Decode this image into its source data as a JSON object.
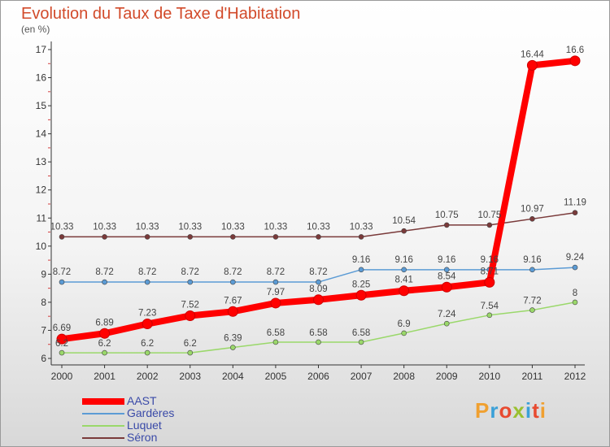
{
  "header": {
    "title": "Evolution du Taux de Taxe d'Habitation",
    "unit": "(en %)"
  },
  "logo": {
    "text": "Proxiti",
    "colors": [
      "#f0a030",
      "#3aa0d8",
      "#e84a30",
      "#9ac030",
      "#3aa0d8",
      "#e84a30",
      "#f0a030"
    ]
  },
  "chart_data": {
    "type": "line",
    "title": "Evolution du Taux de Taxe d'Habitation",
    "ylabel": "(en %)",
    "xlabel": "",
    "ylim": [
      6,
      17
    ],
    "yticks": [
      "6",
      "7",
      "8",
      "9",
      "10",
      "11",
      "12",
      "13",
      "14",
      "15",
      "16",
      "17"
    ],
    "categories": [
      "2000",
      "2001",
      "2002",
      "2003",
      "2004",
      "2005",
      "2006",
      "2007",
      "2008",
      "2009",
      "2010",
      "2011",
      "2012"
    ],
    "grid": false,
    "legend_position": "bottom-left",
    "series": [
      {
        "name": "AAST",
        "color": "#ff0000",
        "values": [
          6.69,
          6.89,
          7.23,
          7.52,
          7.67,
          7.97,
          8.09,
          8.25,
          8.41,
          8.54,
          8.71,
          16.44,
          16.6
        ],
        "labels": [
          "6.69",
          "6.89",
          "7.23",
          "7.52",
          "7.67",
          "7.97",
          "8.09",
          "8.25",
          "8.41",
          "8.54",
          "8.71",
          "16.44",
          "16.6"
        ]
      },
      {
        "name": "Gardères",
        "color": "#5b9bd5",
        "values": [
          8.72,
          8.72,
          8.72,
          8.72,
          8.72,
          8.72,
          8.72,
          9.16,
          9.16,
          9.16,
          9.16,
          9.16,
          9.24
        ],
        "labels": [
          "8.72",
          "8.72",
          "8.72",
          "8.72",
          "8.72",
          "8.72",
          "8.72",
          "9.16",
          "9.16",
          "9.16",
          "9.16",
          "9.16",
          "9.24"
        ]
      },
      {
        "name": "Luquet",
        "color": "#9ad86a",
        "values": [
          6.2,
          6.2,
          6.2,
          6.2,
          6.39,
          6.58,
          6.58,
          6.58,
          6.9,
          7.24,
          7.54,
          7.72,
          8
        ],
        "labels": [
          "6.2",
          "6.2",
          "6.2",
          "6.2",
          "6.39",
          "6.58",
          "6.58",
          "6.58",
          "6.9",
          "7.24",
          "7.54",
          "7.72",
          "8"
        ]
      },
      {
        "name": "Séron",
        "color": "#7a3a3a",
        "values": [
          10.33,
          10.33,
          10.33,
          10.33,
          10.33,
          10.33,
          10.33,
          10.33,
          10.54,
          10.75,
          10.75,
          10.97,
          11.19
        ],
        "labels": [
          "10.33",
          "10.33",
          "10.33",
          "10.33",
          "10.33",
          "10.33",
          "10.33",
          "10.33",
          "10.54",
          "10.75",
          "10.75",
          "10.97",
          "11.19"
        ]
      }
    ]
  }
}
